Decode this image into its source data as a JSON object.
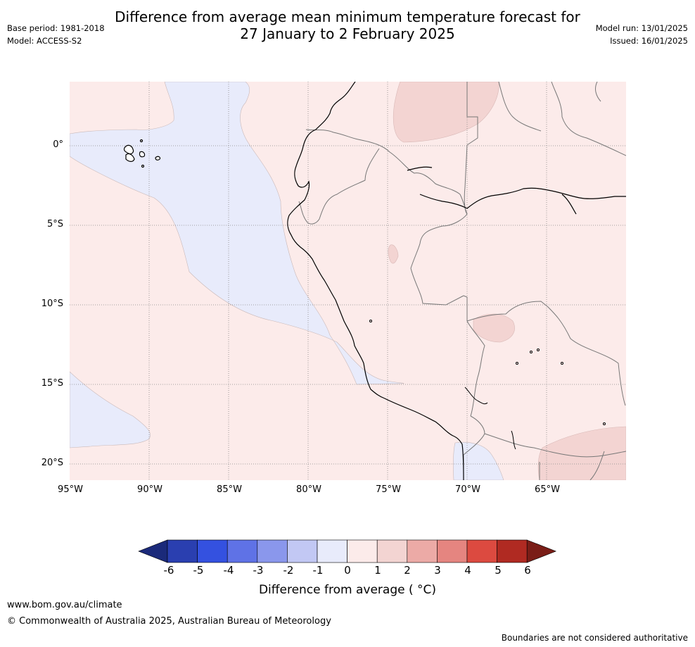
{
  "header": {
    "title_line1": "Difference from average mean minimum temperature forecast for",
    "title_line2": "27 January to 2 February 2025",
    "base_period": "Base period: 1981-2018",
    "model": "Model: ACCESS-S2",
    "model_run": "Model run: 13/01/2025",
    "issued": "Issued: 16/01/2025"
  },
  "map": {
    "latitude_labels": [
      "0°",
      "5°S",
      "10°S",
      "15°S",
      "20°S"
    ],
    "longitude_labels": [
      "95°W",
      "90°W",
      "85°W",
      "80°W",
      "75°W",
      "70°W",
      "65°W"
    ],
    "background_anomaly_class": "0 to 1",
    "colors": {
      "ocean_border": "#c9b9b9",
      "grid": "#888888",
      "coast": "#000000",
      "border": "#777777"
    }
  },
  "colorbar": {
    "ticks": [
      "-6",
      "-5",
      "-4",
      "-3",
      "-2",
      "-1",
      "0",
      "1",
      "2",
      "3",
      "4",
      "5",
      "6"
    ],
    "label": "Difference from average (∘C)",
    "label_display": "Difference from average ( °C)",
    "colors": [
      "#1b2a7a",
      "#2a3fb0",
      "#3451e0",
      "#5f72e6",
      "#8a97ec",
      "#c2c8f4",
      "#e8ebfb",
      "#fcebea",
      "#f3d4d2",
      "#ecaaa6",
      "#e58580",
      "#dc4a40",
      "#b02a22",
      "#7a1d17"
    ]
  },
  "footer": {
    "url": "www.bom.gov.au/climate",
    "copyright": "© Commonwealth of Australia 2025, Australian Bureau of Meteorology",
    "disclaimer": "Boundaries are not considered authoritative"
  }
}
